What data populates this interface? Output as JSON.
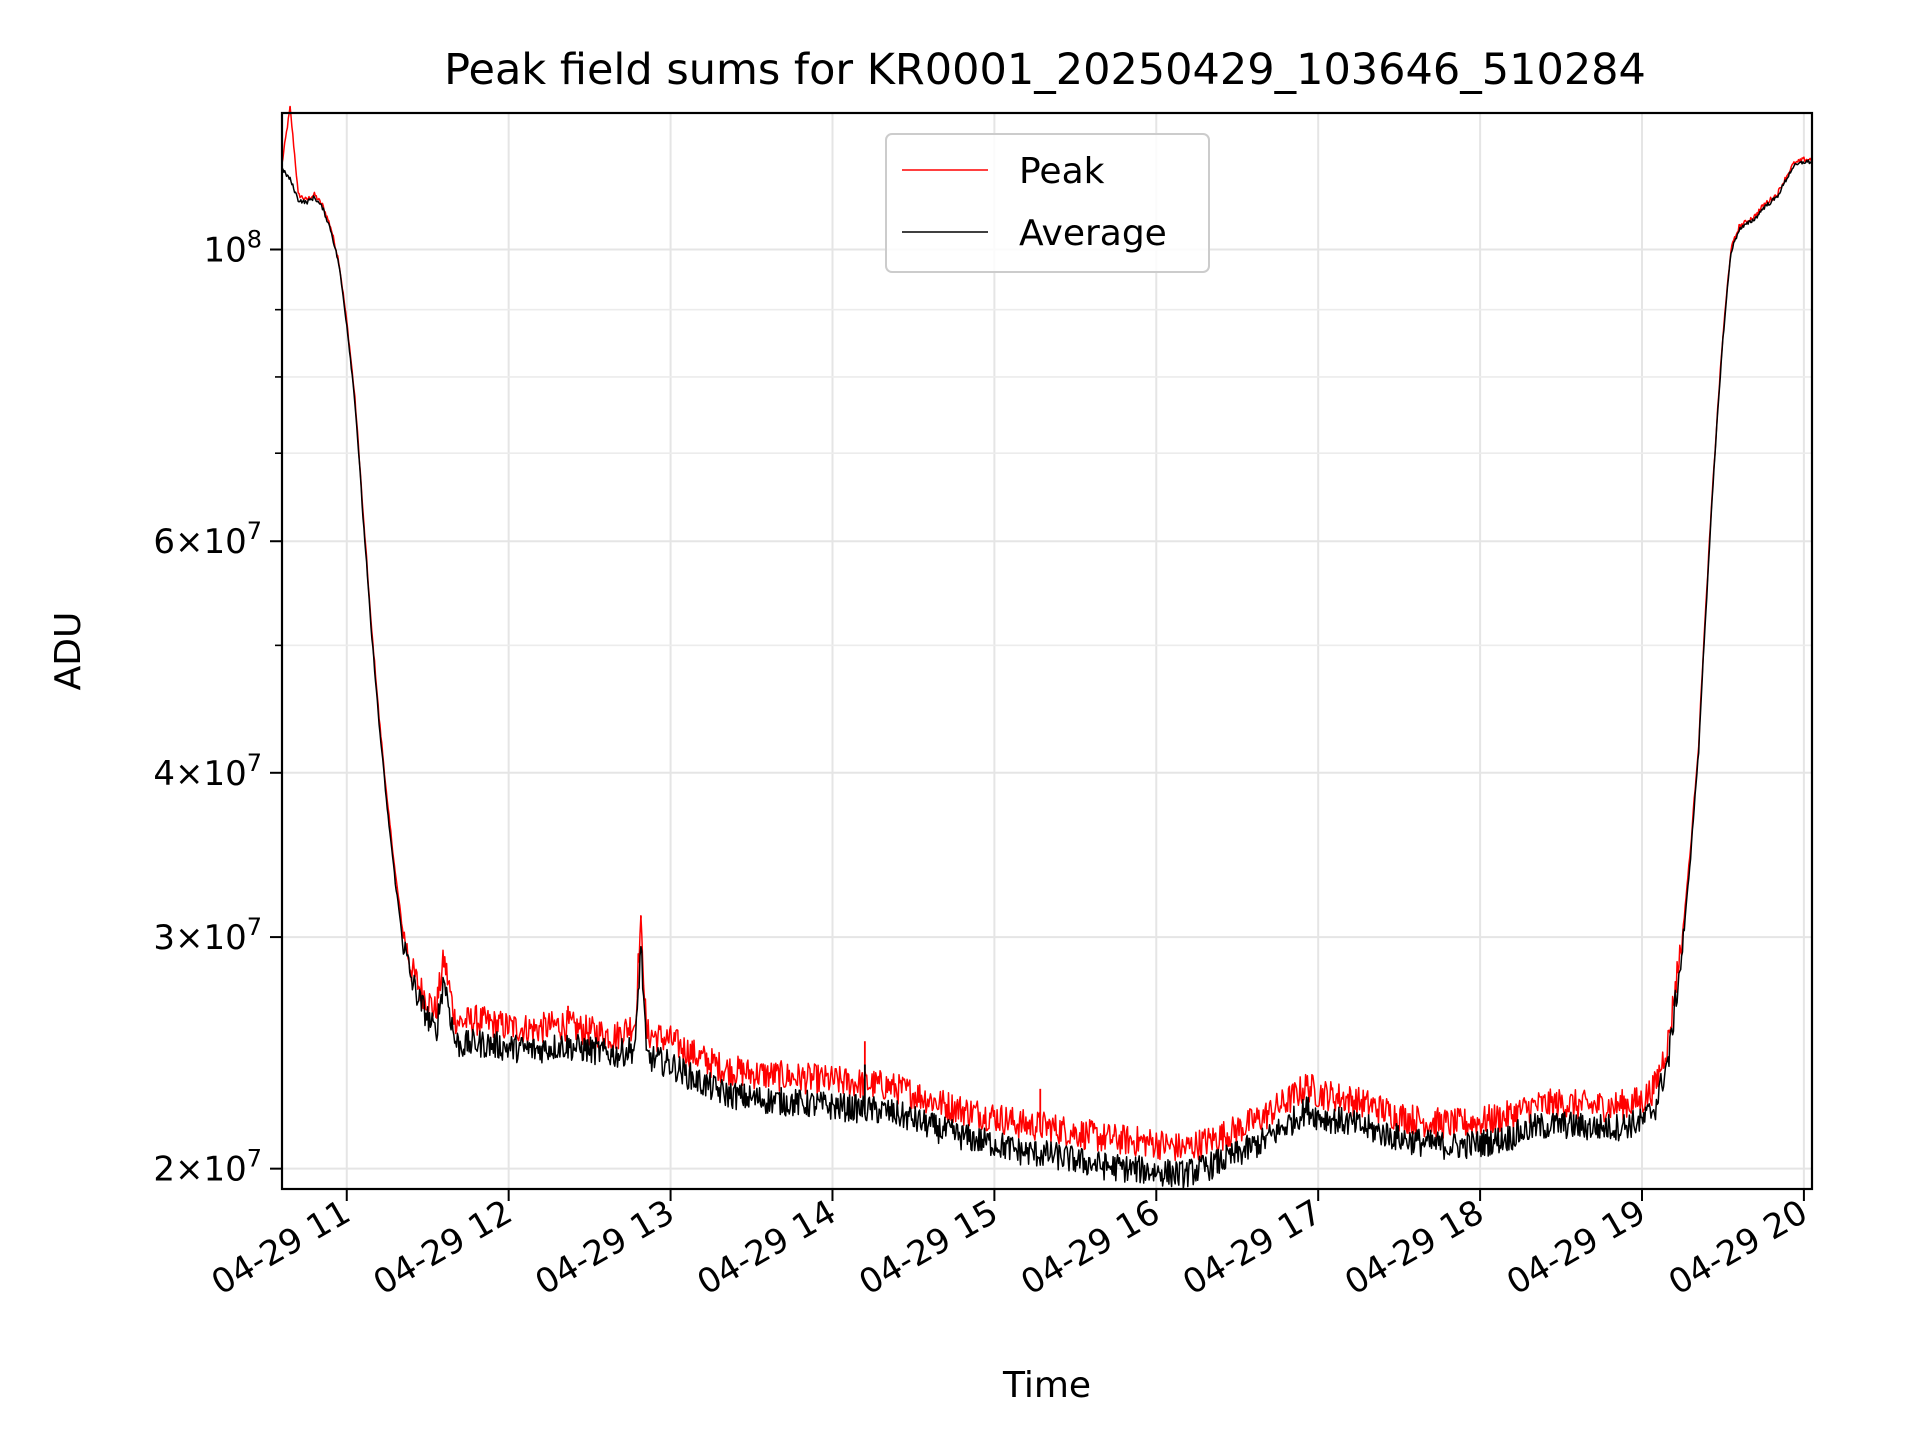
{
  "chart_data": {
    "type": "line",
    "title": "Peak field sums for KR0001_20250429_103646_510284",
    "xlabel": "Time",
    "ylabel": "ADU",
    "yscale": "log",
    "grid": true,
    "legend_position": "top-center",
    "xlim": [
      "2025-04-29 10:36",
      "2025-04-29 20:03"
    ],
    "ylim": [
      19300000,
      127000000
    ],
    "x_ticks": [
      "04-29 11",
      "04-29 12",
      "04-29 13",
      "04-29 14",
      "04-29 15",
      "04-29 16",
      "04-29 17",
      "04-29 18",
      "04-29 19",
      "04-29 20"
    ],
    "y_ticks": [
      {
        "value": 20000000,
        "mantissa": "2",
        "exponent": "7"
      },
      {
        "value": 30000000,
        "mantissa": "3",
        "exponent": "7"
      },
      {
        "value": 40000000,
        "mantissa": "4",
        "exponent": "7"
      },
      {
        "value": 60000000,
        "mantissa": "6",
        "exponent": "7"
      },
      {
        "value": 100000000,
        "mantissa": "",
        "exponent": "8"
      }
    ],
    "y_minor_ticks": [
      50000000,
      70000000,
      80000000,
      90000000
    ],
    "series": [
      {
        "name": "Peak",
        "color": "#ff0000",
        "x": [
          "10:36",
          "10:39",
          "10:42",
          "10:45",
          "10:48",
          "10:51",
          "10:54",
          "10:57",
          "11:00",
          "11:03",
          "11:06",
          "11:09",
          "11:12",
          "11:15",
          "11:18",
          "11:21",
          "11:24",
          "11:27",
          "11:33",
          "11:36",
          "11:40",
          "11:42",
          "11:48",
          "11:55",
          "12:00",
          "12:10",
          "12:20",
          "12:30",
          "12:40",
          "12:47",
          "12:49",
          "12:51",
          "13:00",
          "13:10",
          "13:20",
          "13:30",
          "13:40",
          "13:50",
          "14:00",
          "14:10",
          "14:20",
          "14:30",
          "14:40",
          "14:50",
          "15:00",
          "15:10",
          "15:20",
          "15:30",
          "15:40",
          "15:50",
          "16:00",
          "16:10",
          "16:20",
          "16:30",
          "16:40",
          "16:50",
          "16:56",
          "17:00",
          "17:10",
          "17:20",
          "17:30",
          "17:40",
          "17:50",
          "18:00",
          "18:10",
          "18:20",
          "18:30",
          "18:40",
          "18:50",
          "19:00",
          "19:05",
          "19:10",
          "19:15",
          "19:18",
          "19:21",
          "19:24",
          "19:27",
          "19:30",
          "19:33",
          "19:36",
          "19:39",
          "19:42",
          "19:45",
          "19:50",
          "19:53",
          "19:56",
          "20:00",
          "20:03"
        ],
        "values": [
          116000000,
          128000000,
          110000000,
          109000000,
          110000000,
          108000000,
          104000000,
          98000000,
          88000000,
          77000000,
          63000000,
          52000000,
          44000000,
          38000000,
          33500000,
          30000000,
          28200000,
          27300000,
          26200000,
          28700000,
          25900000,
          25700000,
          25800000,
          25600000,
          25500000,
          25400000,
          25600000,
          25300000,
          25100000,
          25700000,
          31000000,
          25200000,
          24900000,
          24200000,
          23700000,
          23500000,
          23400000,
          23300000,
          23200000,
          23100000,
          23000000,
          22700000,
          22300000,
          22000000,
          21800000,
          21500000,
          21400000,
          21200000,
          21000000,
          20900000,
          20800000,
          20600000,
          20900000,
          21300000,
          21800000,
          22500000,
          23000000,
          22700000,
          22500000,
          22200000,
          21800000,
          21600000,
          21500000,
          21600000,
          21800000,
          22200000,
          22300000,
          22200000,
          22200000,
          22400000,
          23000000,
          25000000,
          30000000,
          35000000,
          42000000,
          55000000,
          70000000,
          86000000,
          100000000,
          104000000,
          105000000,
          106000000,
          108000000,
          110000000,
          113000000,
          116000000,
          117000000,
          117000000
        ]
      },
      {
        "name": "Average",
        "color": "#000000",
        "x": [
          "10:36",
          "10:39",
          "10:42",
          "10:45",
          "10:48",
          "10:51",
          "10:54",
          "10:57",
          "11:00",
          "11:03",
          "11:06",
          "11:09",
          "11:12",
          "11:15",
          "11:18",
          "11:21",
          "11:24",
          "11:27",
          "11:33",
          "11:36",
          "11:40",
          "11:42",
          "11:48",
          "11:55",
          "12:00",
          "12:10",
          "12:20",
          "12:30",
          "12:40",
          "12:47",
          "12:49",
          "12:51",
          "13:00",
          "13:10",
          "13:20",
          "13:30",
          "13:40",
          "13:50",
          "14:00",
          "14:10",
          "14:20",
          "14:30",
          "14:40",
          "14:50",
          "15:00",
          "15:10",
          "15:20",
          "15:30",
          "15:40",
          "15:50",
          "16:00",
          "16:10",
          "16:20",
          "16:30",
          "16:40",
          "16:50",
          "16:56",
          "17:00",
          "17:10",
          "17:20",
          "17:30",
          "17:40",
          "17:50",
          "18:00",
          "18:10",
          "18:20",
          "18:30",
          "18:40",
          "18:50",
          "19:00",
          "19:05",
          "19:10",
          "19:15",
          "19:18",
          "19:21",
          "19:24",
          "19:27",
          "19:30",
          "19:33",
          "19:36",
          "19:39",
          "19:42",
          "19:45",
          "19:50",
          "19:53",
          "19:56",
          "20:00",
          "20:03"
        ],
        "values": [
          115000000,
          113000000,
          109000000,
          108500000,
          109500000,
          107500000,
          103500000,
          97500000,
          87500000,
          76500000,
          62500000,
          51500000,
          43500000,
          37500000,
          33000000,
          29500000,
          27700000,
          26700000,
          25200000,
          27800000,
          24900000,
          24700000,
          24800000,
          24700000,
          24600000,
          24500000,
          24700000,
          24500000,
          24300000,
          24600000,
          29500000,
          24200000,
          23900000,
          23200000,
          22700000,
          22500000,
          22400000,
          22300000,
          22200000,
          22100000,
          22000000,
          21700000,
          21300000,
          21000000,
          20800000,
          20500000,
          20400000,
          20200000,
          20000000,
          19900000,
          19800000,
          19700000,
          20000000,
          20400000,
          20900000,
          21600000,
          22100000,
          21800000,
          21600000,
          21300000,
          21000000,
          20800000,
          20700000,
          20800000,
          21000000,
          21400000,
          21500000,
          21400000,
          21400000,
          21600000,
          22200000,
          24200000,
          29200000,
          34500000,
          41500000,
          54500000,
          69500000,
          85500000,
          99500000,
          103500000,
          104500000,
          105500000,
          107500000,
          109500000,
          112500000,
          115500000,
          116500000,
          116500000
        ]
      }
    ],
    "spikes": {
      "peak": [
        {
          "x": "10:39",
          "value": 128000000
        },
        {
          "x": "11:36",
          "value": 28700000
        },
        {
          "x": "12:22",
          "value": 26600000
        },
        {
          "x": "12:49",
          "value": 31000000
        },
        {
          "x": "14:12",
          "value": 25000000
        },
        {
          "x": "15:17",
          "value": 23000000
        }
      ],
      "average": [
        {
          "x": "11:36",
          "value": 27800000
        },
        {
          "x": "12:49",
          "value": 29500000
        },
        {
          "x": "14:12",
          "value": 24000000
        }
      ]
    }
  }
}
